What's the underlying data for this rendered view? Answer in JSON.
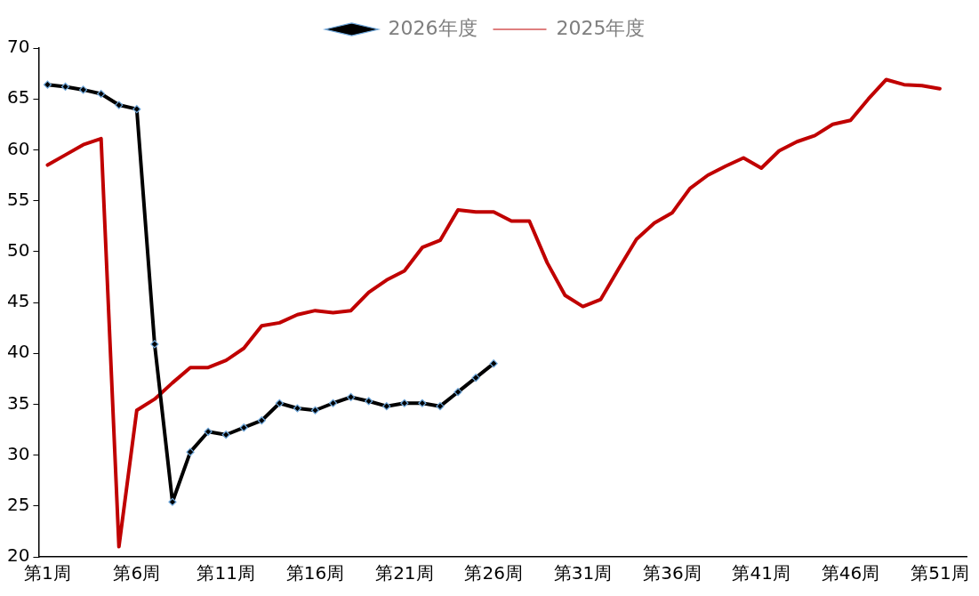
{
  "chart_data": {
    "type": "line",
    "categories": [
      "第1周",
      null,
      null,
      null,
      null,
      "第6周",
      null,
      null,
      null,
      null,
      "第11周",
      null,
      null,
      null,
      null,
      "第16周",
      null,
      null,
      null,
      null,
      "第21周",
      null,
      null,
      null,
      null,
      "第26周",
      null,
      null,
      null,
      null,
      "第31周",
      null,
      null,
      null,
      null,
      "第36周",
      null,
      null,
      null,
      null,
      "第41周",
      null,
      null,
      null,
      null,
      "第46周",
      null,
      null,
      null,
      null,
      "第51周",
      null
    ],
    "series": [
      {
        "name": "2026年度",
        "color": "#000000",
        "marker": "diamond",
        "values": [
          66.4,
          66.2,
          65.9,
          65.5,
          64.4,
          64.0,
          40.9,
          25.4,
          30.3,
          32.3,
          32.0,
          32.7,
          33.4,
          35.1,
          34.6,
          34.4,
          35.1,
          35.7,
          35.3,
          34.8,
          35.1,
          35.1,
          34.8,
          36.2,
          37.6,
          39.0,
          null,
          null,
          null,
          null,
          null,
          null,
          null,
          null,
          null,
          null,
          null,
          null,
          null,
          null,
          null,
          null,
          null,
          null,
          null,
          null,
          null,
          null,
          null,
          null,
          null,
          null
        ]
      },
      {
        "name": "2025年度",
        "color": "#c00000",
        "marker": "none",
        "values": [
          58.5,
          59.5,
          60.5,
          61.1,
          21.0,
          34.4,
          35.5,
          37.1,
          38.6,
          38.6,
          39.3,
          40.5,
          42.7,
          43.0,
          43.8,
          44.2,
          44.0,
          44.2,
          46.0,
          47.2,
          48.1,
          50.4,
          51.1,
          54.1,
          53.9,
          53.9,
          53.0,
          53.0,
          48.9,
          45.7,
          44.6,
          45.3,
          48.3,
          51.2,
          52.8,
          53.8,
          56.2,
          57.5,
          58.4,
          59.2,
          58.2,
          59.9,
          60.8,
          61.4,
          62.5,
          62.9,
          65.0,
          66.9,
          66.4,
          66.3,
          66.0,
          null
        ]
      }
    ],
    "ylim": [
      20,
      70
    ],
    "yticks": [
      20,
      25,
      30,
      35,
      40,
      45,
      50,
      55,
      60,
      65,
      70
    ],
    "legend": "top",
    "line_style": "solid"
  }
}
